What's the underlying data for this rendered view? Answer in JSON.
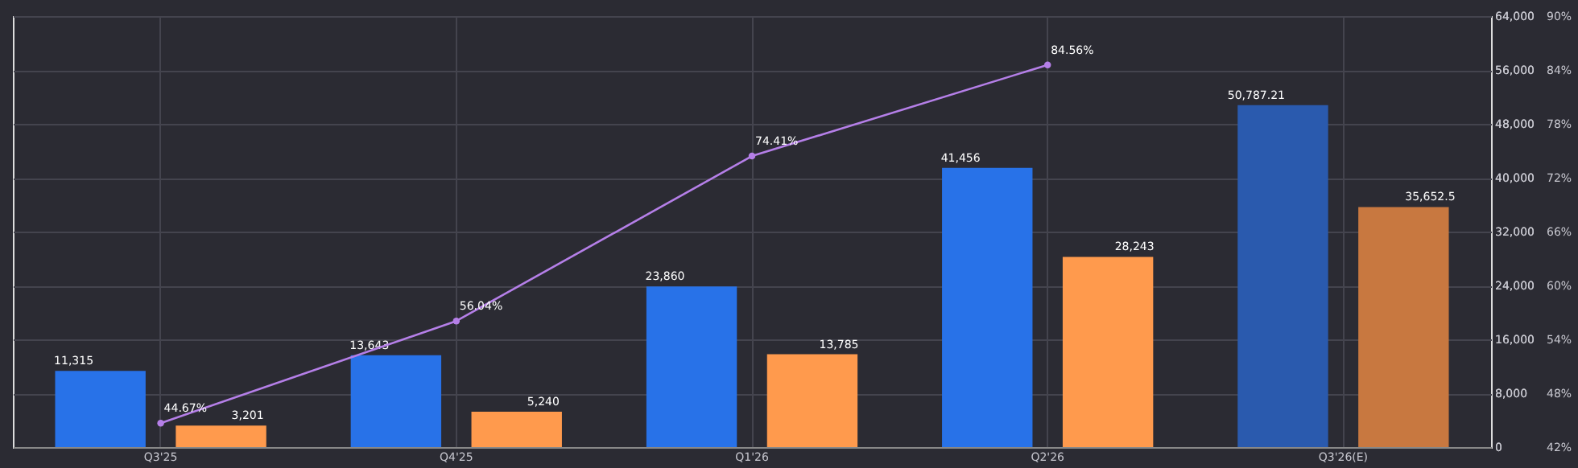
{
  "chart_data": {
    "type": "bar",
    "categories": [
      "Q3'25",
      "Q4'25",
      "Q1'26",
      "Q2'26",
      "Q3'26(E)"
    ],
    "series": [
      {
        "colors": [
          "#2872e8",
          "#2872e8",
          "#2872e8",
          "#2872e8",
          "#2a5aae"
        ],
        "values": [
          11315,
          13643,
          23860,
          41456,
          50787.21
        ],
        "value_labels": [
          "11,315",
          "13,643",
          "23,860",
          "41,456",
          "50,787.21"
        ]
      },
      {
        "colors": [
          "#ff9a4d",
          "#ff9a4d",
          "#ff9a4d",
          "#ff9a4d",
          "#c87840"
        ],
        "values": [
          3201,
          5240,
          13785,
          28243,
          35652.5
        ],
        "value_labels": [
          "3,201",
          "5,240",
          "13,785",
          "28,243",
          "35,652.5"
        ]
      },
      {
        "type": "line",
        "axis": "y2",
        "color": "#b57fe8",
        "values": [
          44.67,
          56.04,
          74.41,
          84.56,
          null
        ],
        "value_labels": [
          "44.67%",
          "56.04%",
          "74.41%",
          "84.56%",
          null
        ]
      }
    ],
    "ylim": [
      0,
      64000
    ],
    "yticks": [
      0,
      {
        "value": 8000,
        "label": "8,000"
      },
      {
        "value": 16000,
        "label": "16,000"
      },
      {
        "value": 24000,
        "label": "24,000"
      },
      {
        "value": 32000,
        "label": "32,000"
      },
      {
        "value": 40000,
        "label": "40,000"
      },
      {
        "value": 48000,
        "label": "48,000"
      },
      {
        "value": 56000,
        "label": "56,000"
      },
      {
        "value": 64000,
        "label": "64,000"
      }
    ],
    "y2lim": [
      42,
      90
    ],
    "y2ticks": [
      {
        "value": 42,
        "label": "42%"
      },
      {
        "value": 48,
        "label": "48%"
      },
      {
        "value": 54,
        "label": "54%"
      },
      {
        "value": 60,
        "label": "60%"
      },
      {
        "value": 66,
        "label": "66%"
      },
      {
        "value": 72,
        "label": "72%"
      },
      {
        "value": 78,
        "label": "78%"
      },
      {
        "value": 84,
        "label": "84%"
      },
      {
        "value": 90,
        "label": "90%"
      }
    ],
    "grid": true,
    "marker": "circle"
  }
}
